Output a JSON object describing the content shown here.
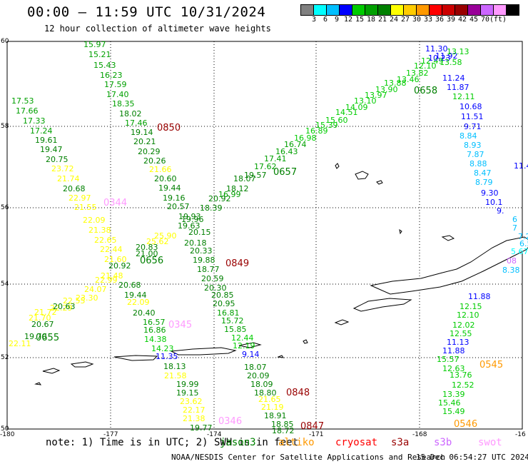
{
  "header": {
    "title": "00:00 – 11:59 UTC 10/31/2024",
    "subtitle": "12 hour collection of altimeter wave heights"
  },
  "legend": {
    "colors": [
      "#808080",
      "#00ffff",
      "#00bfff",
      "#0000ff",
      "#00cc00",
      "#00a000",
      "#008000",
      "#ffff00",
      "#ffcc00",
      "#ff9900",
      "#ff0000",
      "#cc0000",
      "#990000",
      "#990099",
      "#cc66ff",
      "#ff99ff",
      "#000000"
    ],
    "labels": [
      "3",
      "6",
      "9",
      "12",
      "15",
      "18",
      "21",
      "24",
      "27",
      "30",
      "33",
      "36",
      "39",
      "42",
      "45",
      "70",
      "(ft)"
    ]
  },
  "axes": {
    "lat_labels": [
      "60",
      "58",
      "56",
      "54",
      "52",
      "50"
    ],
    "lon_labels": [
      "-180",
      "-177",
      "-174",
      "-171",
      "-168",
      "-16"
    ]
  },
  "passes": [
    {
      "label": "0850",
      "color": "#990000"
    },
    {
      "label": "0849",
      "color": "#990000"
    },
    {
      "label": "0848",
      "color": "#990000"
    },
    {
      "label": "0847",
      "color": "#990000"
    },
    {
      "label": "0658",
      "color": "#008000"
    },
    {
      "label": "0657",
      "color": "#008000"
    },
    {
      "label": "0656",
      "color": "#008000"
    },
    {
      "label": "0655",
      "color": "#008000"
    },
    {
      "label": "0344",
      "color": "#ff99ff"
    },
    {
      "label": "0345",
      "color": "#ff99ff"
    },
    {
      "label": "0346",
      "color": "#ff99ff"
    },
    {
      "label": "0545",
      "color": "#ff9900"
    },
    {
      "label": "0546",
      "color": "#ff9900"
    }
  ],
  "readings": [
    {
      "v": "15.97",
      "c": "#00a000"
    },
    {
      "v": "15.21",
      "c": "#00a000"
    },
    {
      "v": "15.43",
      "c": "#00a000"
    },
    {
      "v": "16.23",
      "c": "#00a000"
    },
    {
      "v": "17.59",
      "c": "#00a000"
    },
    {
      "v": "17.40",
      "c": "#00a000"
    },
    {
      "v": "18.35",
      "c": "#00a000"
    },
    {
      "v": "18.02",
      "c": "#008000"
    },
    {
      "v": "17.46",
      "c": "#00a000"
    },
    {
      "v": "19.14",
      "c": "#008000"
    },
    {
      "v": "20.21",
      "c": "#008000"
    },
    {
      "v": "20.29",
      "c": "#008000"
    },
    {
      "v": "20.26",
      "c": "#008000"
    },
    {
      "v": "21.66",
      "c": "#ffff00"
    },
    {
      "v": "20.60",
      "c": "#008000"
    },
    {
      "v": "19.44",
      "c": "#008000"
    },
    {
      "v": "19.16",
      "c": "#008000"
    },
    {
      "v": "20.57",
      "c": "#008000"
    },
    {
      "v": "17.53",
      "c": "#00a000"
    },
    {
      "v": "17.66",
      "c": "#00a000"
    },
    {
      "v": "17.33",
      "c": "#00a000"
    },
    {
      "v": "17.24",
      "c": "#00a000"
    },
    {
      "v": "19.61",
      "c": "#008000"
    },
    {
      "v": "19.47",
      "c": "#008000"
    },
    {
      "v": "20.75",
      "c": "#008000"
    },
    {
      "v": "23.72",
      "c": "#ffff00"
    },
    {
      "v": "21.74",
      "c": "#ffff00"
    },
    {
      "v": "20.68",
      "c": "#008000"
    },
    {
      "v": "22.97",
      "c": "#ffff00"
    },
    {
      "v": "21.55",
      "c": "#ffff00"
    },
    {
      "v": "22.09",
      "c": "#ffff00"
    },
    {
      "v": "21.38",
      "c": "#ffff00"
    },
    {
      "v": "22.65",
      "c": "#ffff00"
    },
    {
      "v": "22.44",
      "c": "#ffff00"
    },
    {
      "v": "21.60",
      "c": "#ffff00"
    },
    {
      "v": "20.92",
      "c": "#008000"
    },
    {
      "v": "21.48",
      "c": "#ffff00"
    },
    {
      "v": "22.99",
      "c": "#ffff00"
    },
    {
      "v": "24.07",
      "c": "#ffff00"
    },
    {
      "v": "23.30",
      "c": "#ffff00"
    },
    {
      "v": "22.55",
      "c": "#ffff00"
    },
    {
      "v": "22.29",
      "c": "#ffff00"
    },
    {
      "v": "20.63",
      "c": "#008000"
    },
    {
      "v": "21.72",
      "c": "#ffff00"
    },
    {
      "v": "21.70",
      "c": "#ffff00"
    },
    {
      "v": "20.67",
      "c": "#008000"
    },
    {
      "v": "19.70",
      "c": "#008000"
    },
    {
      "v": "22.11",
      "c": "#ffff00"
    },
    {
      "v": "21.00",
      "c": "#008000"
    },
    {
      "v": "20.83",
      "c": "#008000"
    },
    {
      "v": "25.90",
      "c": "#ffff00"
    },
    {
      "v": "25.62",
      "c": "#ffff00"
    },
    {
      "v": "20.68",
      "c": "#008000"
    },
    {
      "v": "19.44",
      "c": "#008000"
    },
    {
      "v": "22.09",
      "c": "#ffff00"
    },
    {
      "v": "20.40",
      "c": "#008000"
    },
    {
      "v": "16.57",
      "c": "#00a000"
    },
    {
      "v": "16.86",
      "c": "#00a000"
    },
    {
      "v": "14.38",
      "c": "#00cc00"
    },
    {
      "v": "14.23",
      "c": "#00cc00"
    },
    {
      "v": "11.35",
      "c": "#0000ff"
    },
    {
      "v": "19.93",
      "c": "#008000"
    },
    {
      "v": "19.96",
      "c": "#008000"
    },
    {
      "v": "20.15",
      "c": "#008000"
    },
    {
      "v": "19.63",
      "c": "#008000"
    },
    {
      "v": "20.18",
      "c": "#008000"
    },
    {
      "v": "20.33",
      "c": "#008000"
    },
    {
      "v": "19.88",
      "c": "#008000"
    },
    {
      "v": "18.77",
      "c": "#008000"
    },
    {
      "v": "20.59",
      "c": "#008000"
    },
    {
      "v": "20.30",
      "c": "#008000"
    },
    {
      "v": "20.85",
      "c": "#008000"
    },
    {
      "v": "20.95",
      "c": "#008000"
    },
    {
      "v": "16.81",
      "c": "#00a000"
    },
    {
      "v": "15.72",
      "c": "#00a000"
    },
    {
      "v": "15.85",
      "c": "#00a000"
    },
    {
      "v": "12.44",
      "c": "#00cc00"
    },
    {
      "v": "12.19",
      "c": "#00cc00"
    },
    {
      "v": "9.14",
      "c": "#0000ff"
    },
    {
      "v": "18.07",
      "c": "#008000"
    },
    {
      "v": "20.09",
      "c": "#008000"
    },
    {
      "v": "18.09",
      "c": "#008000"
    },
    {
      "v": "18.80",
      "c": "#008000"
    },
    {
      "v": "21.65",
      "c": "#ffff00"
    },
    {
      "v": "21.19",
      "c": "#ffff00"
    },
    {
      "v": "18.91",
      "c": "#008000"
    },
    {
      "v": "18.85",
      "c": "#008000"
    },
    {
      "v": "18.72",
      "c": "#008000"
    },
    {
      "v": "18.13",
      "c": "#008000"
    },
    {
      "v": "21.58",
      "c": "#ffff00"
    },
    {
      "v": "19.99",
      "c": "#008000"
    },
    {
      "v": "19.15",
      "c": "#008000"
    },
    {
      "v": "23.62",
      "c": "#ffff00"
    },
    {
      "v": "22.17",
      "c": "#ffff00"
    },
    {
      "v": "21.38",
      "c": "#ffff00"
    },
    {
      "v": "19.77",
      "c": "#008000"
    },
    {
      "v": "18.39",
      "c": "#008000"
    },
    {
      "v": "20.92",
      "c": "#008000"
    },
    {
      "v": "16.99",
      "c": "#00a000"
    },
    {
      "v": "18.12",
      "c": "#008000"
    },
    {
      "v": "18.07",
      "c": "#008000"
    },
    {
      "v": "19.57",
      "c": "#008000"
    },
    {
      "v": "17.62",
      "c": "#00a000"
    },
    {
      "v": "17.41",
      "c": "#00a000"
    },
    {
      "v": "16.43",
      "c": "#00a000"
    },
    {
      "v": "16.74",
      "c": "#00a000"
    },
    {
      "v": "16.98",
      "c": "#00cc00"
    },
    {
      "v": "16.89",
      "c": "#00cc00"
    },
    {
      "v": "15.39",
      "c": "#00cc00"
    },
    {
      "v": "15.60",
      "c": "#00cc00"
    },
    {
      "v": "14.51",
      "c": "#00cc00"
    },
    {
      "v": "14.09",
      "c": "#00cc00"
    },
    {
      "v": "13.10",
      "c": "#00cc00"
    },
    {
      "v": "13.97",
      "c": "#00cc00"
    },
    {
      "v": "13.90",
      "c": "#00cc00"
    },
    {
      "v": "13.88",
      "c": "#00cc00"
    },
    {
      "v": "13.46",
      "c": "#00cc00"
    },
    {
      "v": "13.82",
      "c": "#00cc00"
    },
    {
      "v": "12.10",
      "c": "#00cc00"
    },
    {
      "v": "12.49",
      "c": "#00cc00"
    },
    {
      "v": "11.30",
      "c": "#0000ff"
    },
    {
      "v": "11.92",
      "c": "#0000ff"
    },
    {
      "v": "10.23",
      "c": "#0000ff"
    },
    {
      "v": "13.58",
      "c": "#00cc00"
    },
    {
      "v": "13.13",
      "c": "#00cc00"
    },
    {
      "v": "11.24",
      "c": "#0000ff"
    },
    {
      "v": "11.87",
      "c": "#0000ff"
    },
    {
      "v": "12.11",
      "c": "#00cc00"
    },
    {
      "v": "10.68",
      "c": "#0000ff"
    },
    {
      "v": "11.51",
      "c": "#0000ff"
    },
    {
      "v": "9.71",
      "c": "#0000ff"
    },
    {
      "v": "8.84",
      "c": "#00bfff"
    },
    {
      "v": "8.93",
      "c": "#00bfff"
    },
    {
      "v": "7.87",
      "c": "#00bfff"
    },
    {
      "v": "8.88",
      "c": "#00bfff"
    },
    {
      "v": "8.47",
      "c": "#00bfff"
    },
    {
      "v": "8.79",
      "c": "#00bfff"
    },
    {
      "v": "9.30",
      "c": "#0000ff"
    },
    {
      "v": "10.1",
      "c": "#0000ff"
    },
    {
      "v": "9.",
      "c": "#0000ff"
    },
    {
      "v": "6",
      "c": "#00bfff"
    },
    {
      "v": "7",
      "c": "#00bfff"
    },
    {
      "v": "7.29",
      "c": "#00bfff"
    },
    {
      "v": "6.51",
      "c": "#00bfff"
    },
    {
      "v": "5.67",
      "c": "#00ffff"
    },
    {
      "v": "08",
      "c": "#cc66ff"
    },
    {
      "v": "8.38",
      "c": "#00bfff"
    },
    {
      "v": "11.43",
      "c": "#0000ff"
    },
    {
      "v": "11.88",
      "c": "#0000ff"
    },
    {
      "v": "12.15",
      "c": "#00cc00"
    },
    {
      "v": "12.10",
      "c": "#00cc00"
    },
    {
      "v": "12.02",
      "c": "#00cc00"
    },
    {
      "v": "12.55",
      "c": "#00cc00"
    },
    {
      "v": "11.13",
      "c": "#0000ff"
    },
    {
      "v": "11.88",
      "c": "#0000ff"
    },
    {
      "v": "15.57",
      "c": "#00cc00"
    },
    {
      "v": "12.63",
      "c": "#00cc00"
    },
    {
      "v": "13.76",
      "c": "#00cc00"
    },
    {
      "v": "12.52",
      "c": "#00cc00"
    },
    {
      "v": "13.39",
      "c": "#00cc00"
    },
    {
      "v": "15.46",
      "c": "#00cc00"
    },
    {
      "v": "15.49",
      "c": "#00cc00"
    }
  ],
  "footer": {
    "note": "note: 1) Time is in UTC; 2) SWH is in feet",
    "satellites": [
      {
        "name": "jason3",
        "color": "#008000"
      },
      {
        "name": "altiko",
        "color": "#ff9900"
      },
      {
        "name": "cryosat",
        "color": "#ff0000"
      },
      {
        "name": "s3a",
        "color": "#990000"
      },
      {
        "name": "s3b",
        "color": "#cc66ff"
      },
      {
        "name": "swot",
        "color": "#ff99ff"
      }
    ],
    "credit": "NOAA/NESDIS Center for Satellite Applications and Research",
    "timestamp": "15 Dec 06:54:27 UTC 2024"
  }
}
